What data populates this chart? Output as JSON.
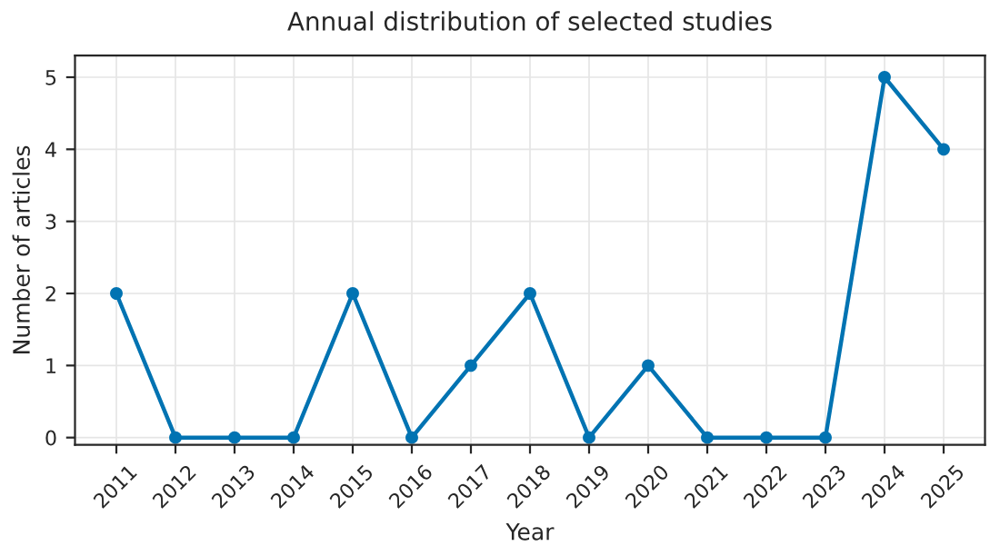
{
  "chart_data": {
    "type": "line",
    "title": "Annual distribution of selected studies",
    "xlabel": "Year",
    "ylabel": "Number of articles",
    "categories": [
      "2011",
      "2012",
      "2013",
      "2014",
      "2015",
      "2016",
      "2017",
      "2018",
      "2019",
      "2020",
      "2021",
      "2022",
      "2023",
      "2024",
      "2025"
    ],
    "series": [
      {
        "color": "#0173b2",
        "values": [
          2,
          0,
          0,
          0,
          2,
          0,
          1,
          2,
          0,
          1,
          0,
          0,
          0,
          5,
          4
        ]
      }
    ],
    "ylim": [
      -0.1,
      5.3
    ],
    "yticks": [
      0,
      1,
      2,
      3,
      4,
      5
    ],
    "grid": true,
    "marker": "circle",
    "line_style": "solid"
  }
}
